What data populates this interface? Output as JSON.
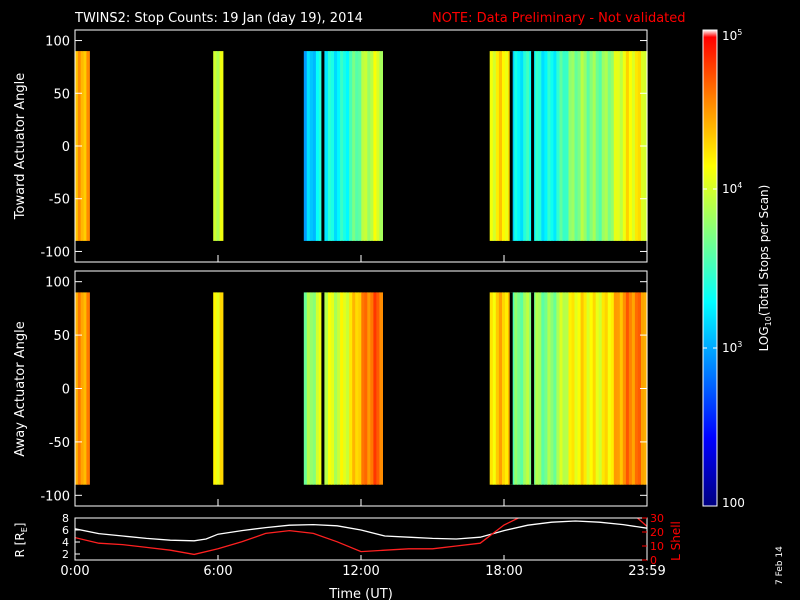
{
  "header": {
    "title": "TWINS2: Stop Counts: 19 Jan (day  19), 2014",
    "note": "NOTE: Data Preliminary - Not validated",
    "note_color": "#ff0000"
  },
  "date_stamp": "7 Feb 14",
  "chart_data": [
    {
      "type": "heatmap",
      "name": "toward",
      "ylabel": "Toward Actuator Angle",
      "ylim": [
        -110,
        110
      ],
      "yticks": [
        "100",
        "50",
        "0",
        "-50",
        "-100"
      ],
      "ytick_values": [
        100,
        50,
        0,
        -50,
        -100
      ],
      "data_range": [
        -90,
        90
      ],
      "blocks": [
        {
          "t0": 0.0,
          "t1": 0.6,
          "level": 0.78
        },
        {
          "t0": 5.8,
          "t1": 6.2,
          "level": 0.66
        },
        {
          "t0": 9.6,
          "t1": 12.9,
          "level": 0.32
        },
        {
          "t0": 17.4,
          "t1": 18.3,
          "level": 0.7
        },
        {
          "t0": 18.3,
          "t1": 24.0,
          "level": 0.38
        }
      ],
      "gaps_hours": [
        10.4,
        18.3,
        19.2
      ]
    },
    {
      "type": "heatmap",
      "name": "away",
      "ylabel": "Away Actuator Angle",
      "ylim": [
        -110,
        110
      ],
      "yticks": [
        "100",
        "50",
        "0",
        "-50",
        "-100"
      ],
      "ytick_values": [
        100,
        50,
        0,
        -50,
        -100
      ],
      "data_range": [
        -90,
        90
      ],
      "blocks": [
        {
          "t0": 0.0,
          "t1": 0.6,
          "level": 0.8
        },
        {
          "t0": 5.8,
          "t1": 6.2,
          "level": 0.72
        },
        {
          "t0": 9.6,
          "t1": 12.9,
          "level": 0.55
        },
        {
          "t0": 17.4,
          "t1": 18.3,
          "level": 0.74
        },
        {
          "t0": 18.3,
          "t1": 24.0,
          "level": 0.52
        }
      ],
      "gaps_hours": [
        10.4,
        18.3,
        19.2
      ]
    },
    {
      "type": "line",
      "name": "orbit",
      "ylabel": "R [R",
      "ylabel_sub": "E",
      "ylabel_close": "]",
      "ylim": [
        1,
        8
      ],
      "yticks": [
        "8",
        "6",
        "4",
        "2"
      ],
      "ytick_values": [
        8,
        6,
        4,
        2
      ],
      "y2label": "L Shell",
      "y2lim": [
        0,
        30
      ],
      "y2ticks": [
        "30",
        "20",
        "10",
        "0"
      ],
      "y2tick_values": [
        30,
        20,
        10,
        0
      ],
      "xlabel": "Time (UT)",
      "xticks": [
        "0:00",
        "6:00",
        "12:00",
        "18:00",
        "23:59"
      ],
      "xtick_values": [
        0,
        6,
        12,
        18,
        24
      ],
      "series": [
        {
          "name": "R",
          "axis": "left",
          "color": "#ffffff",
          "x": [
            0,
            1,
            2,
            3,
            4,
            5,
            5.5,
            6,
            7,
            8,
            9,
            10,
            11,
            12,
            13,
            14,
            15,
            16,
            17,
            18,
            19,
            20,
            21,
            22,
            23,
            24
          ],
          "y": [
            6.2,
            5.4,
            5.0,
            4.6,
            4.3,
            4.2,
            4.5,
            5.3,
            5.9,
            6.4,
            6.8,
            6.9,
            6.7,
            6.0,
            5.0,
            4.8,
            4.6,
            4.5,
            4.8,
            5.9,
            6.8,
            7.3,
            7.5,
            7.3,
            6.9,
            6.3
          ]
        },
        {
          "name": "L",
          "axis": "right",
          "color": "#ff2020",
          "x": [
            0,
            1,
            2,
            3,
            4,
            5,
            6,
            7,
            8,
            9,
            10,
            11,
            12,
            13,
            14,
            15,
            16,
            17,
            18,
            18.6,
            19
          ],
          "y": [
            16,
            12,
            11,
            9,
            7,
            4,
            8,
            13,
            19,
            21,
            19,
            13,
            6,
            7,
            8,
            8,
            10,
            12,
            25,
            30,
            32
          ]
        },
        {
          "name": "L2",
          "axis": "right",
          "color": "#ff2020",
          "x": [
            23.6,
            24
          ],
          "y": [
            30,
            24
          ]
        }
      ]
    }
  ],
  "colorbar": {
    "label": "LOG",
    "label_sub": "10",
    "label_rest": "(Total Stops per Scan)",
    "tick_top": "10",
    "tick_top_exp": "5",
    "tick_mid": "10",
    "tick_mid_exp": "4",
    "tick_low": "10",
    "tick_low_exp": "3",
    "tick_bottom": "100",
    "colors": [
      "#000080",
      "#0000ff",
      "#0080ff",
      "#00ffff",
      "#80ff80",
      "#ffff00",
      "#ff8000",
      "#ff0000",
      "#ffffff"
    ]
  }
}
